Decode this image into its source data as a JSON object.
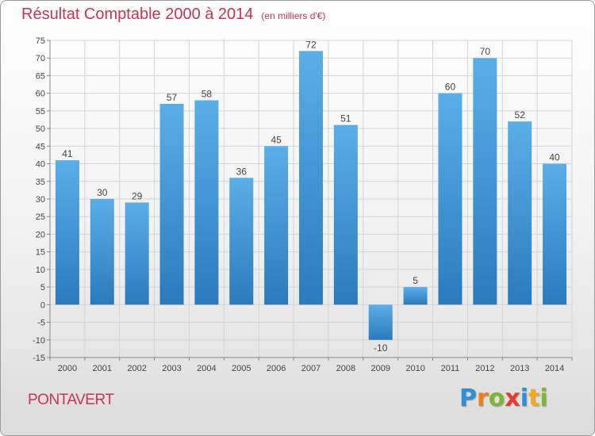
{
  "title": "Résultat Comptable 2000 à 2014",
  "subtitle": "(en milliers d'€)",
  "place": "PONTAVERT",
  "logo": {
    "letters": [
      "P",
      "r",
      "o",
      "x",
      "i",
      "t",
      "i"
    ],
    "colors": [
      "#2e8fd6",
      "#f07d1c",
      "#7ab82f",
      "#e63a2e",
      "#2e8fd6",
      "#f5a81c",
      "#7ab82f"
    ]
  },
  "colors": {
    "bar_top": "#5aaee8",
    "bar_bottom": "#2a7bbd",
    "title": "#c8334f"
  },
  "chart_data": {
    "type": "bar",
    "categories": [
      "2000",
      "2001",
      "2002",
      "2003",
      "2004",
      "2005",
      "2006",
      "2007",
      "2008",
      "2009",
      "2010",
      "2011",
      "2012",
      "2013",
      "2014"
    ],
    "values": [
      41,
      30,
      29,
      57,
      58,
      36,
      45,
      72,
      51,
      -10,
      5,
      60,
      70,
      52,
      40
    ],
    "data_labels": [
      "41",
      "30",
      "29",
      "57",
      "58",
      "36",
      "45",
      "72",
      "51",
      "-10",
      "5",
      "60",
      "70",
      "52",
      "40"
    ],
    "ylim": [
      -15,
      75
    ],
    "yticks": [
      -15,
      -10,
      -5,
      0,
      5,
      10,
      15,
      20,
      25,
      30,
      35,
      40,
      45,
      50,
      55,
      60,
      65,
      70,
      75
    ],
    "grid": true
  }
}
